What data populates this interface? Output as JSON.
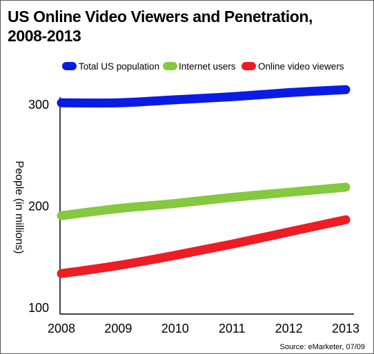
{
  "chart_data": {
    "type": "line",
    "title_lines": [
      "US Online Video Viewers and Penetration,",
      "2008-2013"
    ],
    "xlabel": "",
    "ylabel": "People (in millions)",
    "x": [
      2008,
      2009,
      2010,
      2011,
      2012,
      2013
    ],
    "x_tick_labels": [
      "2008",
      "2009",
      "2010",
      "2011",
      "2012",
      "2013"
    ],
    "ylim": [
      100,
      310
    ],
    "y_ticks": [
      100,
      200,
      300
    ],
    "y_tick_labels": [
      "100",
      "200",
      "300"
    ],
    "grid": false,
    "legend_position": "top",
    "series": [
      {
        "name": "Total US population",
        "color": "#0b1be6",
        "values": [
          301,
          301,
          304,
          307,
          311,
          314
        ]
      },
      {
        "name": "Internet users",
        "color": "#84c93e",
        "values": [
          190,
          197,
          202,
          208,
          213,
          218
        ]
      },
      {
        "name": "Online video viewers",
        "color": "#ee1c25",
        "values": [
          133,
          141,
          151,
          162,
          174,
          186
        ]
      }
    ],
    "source": "Source: eMarketer, 07/09"
  }
}
